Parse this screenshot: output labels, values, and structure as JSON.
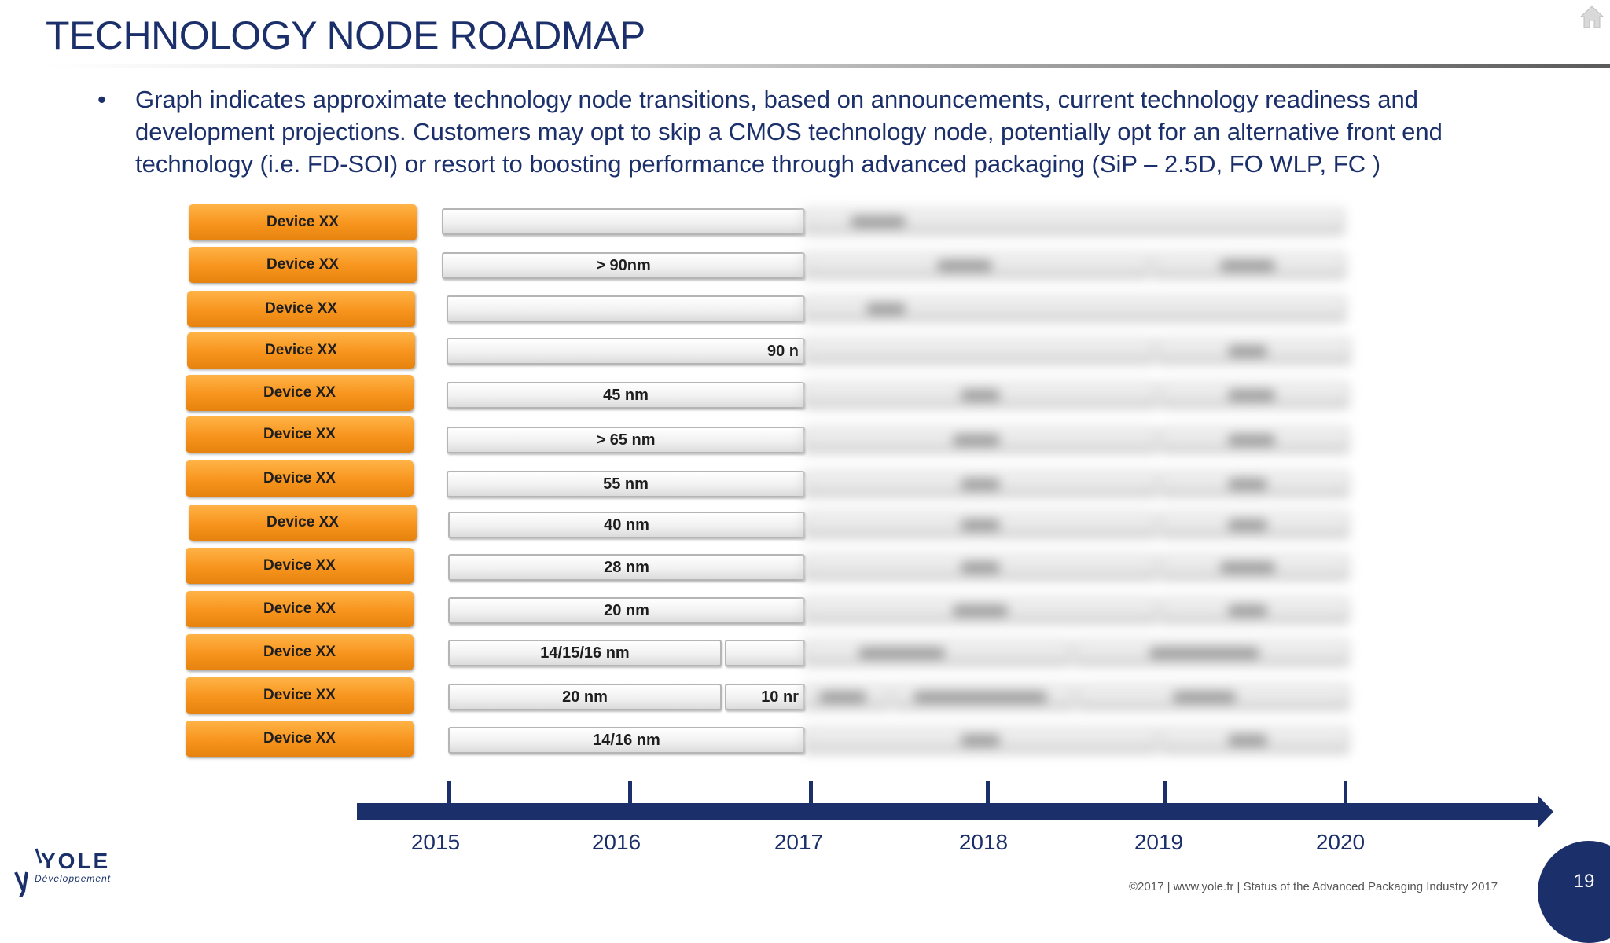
{
  "header": {
    "title": "TECHNOLOGY NODE ROADMAP",
    "bullet": "Graph indicates approximate technology node transitions, based on announcements, current technology readiness and development projections. Customers may opt to skip a CMOS technology node, potentially opt for an alternative front end technology (i.e. FD-SOI) or resort to boosting performance through advanced packaging (SiP – 2.5D, FO WLP, FC )",
    "bullet_marker": "•"
  },
  "rows": [
    {
      "device": "Device XX",
      "bars": [
        {
          "label": ""
        }
      ]
    },
    {
      "device": "Device XX",
      "bars": [
        {
          "label": "> 90nm"
        }
      ]
    },
    {
      "device": "Device XX",
      "bars": [
        {
          "label": ""
        }
      ]
    },
    {
      "device": "Device XX",
      "bars": [
        {
          "label": "90 n"
        }
      ]
    },
    {
      "device": "Device XX",
      "bars": [
        {
          "label": "45 nm"
        }
      ]
    },
    {
      "device": "Device XX",
      "bars": [
        {
          "label": "> 65 nm"
        }
      ]
    },
    {
      "device": "Device XX",
      "bars": [
        {
          "label": "55 nm"
        }
      ]
    },
    {
      "device": "Device XX",
      "bars": [
        {
          "label": "40 nm"
        }
      ]
    },
    {
      "device": "Device XX",
      "bars": [
        {
          "label": "28 nm"
        }
      ]
    },
    {
      "device": "Device XX",
      "bars": [
        {
          "label": "20 nm"
        }
      ]
    },
    {
      "device": "Device XX",
      "bars": [
        {
          "label": "14/15/16 nm"
        },
        {
          "label": ""
        }
      ]
    },
    {
      "device": "Device XX",
      "bars": [
        {
          "label": "20 nm"
        },
        {
          "label": "10 nr"
        }
      ]
    },
    {
      "device": "Device XX",
      "bars": [
        {
          "label": "14/16 nm"
        }
      ]
    }
  ],
  "timeline": {
    "years": [
      "2015",
      "2016",
      "2017",
      "2018",
      "2019",
      "2020"
    ]
  },
  "footer": {
    "logo_text": "YOLE",
    "logo_sub": "Développement",
    "copyright": "©2017 | www.yole.fr | Status of the Advanced Packaging Industry 2017",
    "page_number": "19"
  },
  "icons": {
    "home": "home-icon"
  },
  "colors": {
    "navy": "#1b2f6b",
    "orange": "#f7941d"
  }
}
